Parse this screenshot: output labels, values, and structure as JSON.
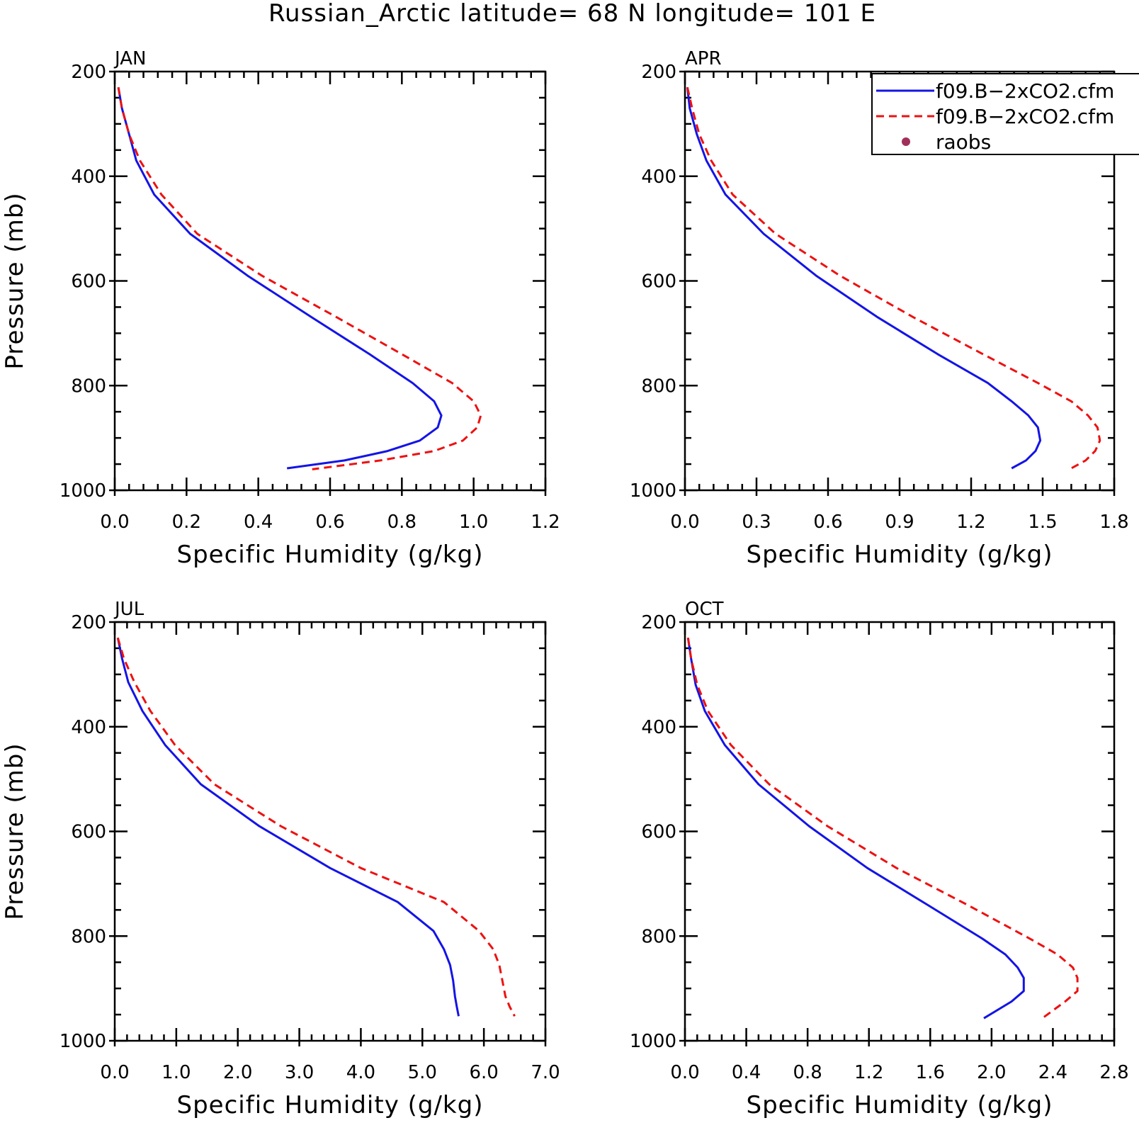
{
  "title": "Russian_Arctic  latitude= 68 N longitude= 101 E",
  "colors": {
    "model1": "#1414e6",
    "model2": "#ee1111",
    "raobs": "#a0305a",
    "axis": "#000000"
  },
  "legend": {
    "placement": "top-right",
    "entries": [
      {
        "label": "f09.B−2xCO2.cfm",
        "style": "solid",
        "color": "#1414e6"
      },
      {
        "label": "f09.B−2xCO2.cfm",
        "style": "dashed",
        "color": "#ee1111"
      },
      {
        "label": "raobs",
        "style": "marker",
        "color": "#a0305a"
      }
    ]
  },
  "chart_data": [
    {
      "type": "line",
      "title": "JAN",
      "xlabel": "Specific Humidity (g/kg)",
      "ylabel": "Pressure (mb)",
      "xlim": [
        0,
        1.2
      ],
      "ylim": [
        1000,
        200
      ],
      "y_inverted": true,
      "xticks": [
        "0.0",
        "0.2",
        "0.4",
        "0.6",
        "0.8",
        "1.0",
        "1.2"
      ],
      "yticks": [
        "200",
        "400",
        "600",
        "800",
        "1000"
      ],
      "series": [
        {
          "style": "solid",
          "points": [
            [
              0.01,
              230
            ],
            [
              0.02,
              270
            ],
            [
              0.04,
              320
            ],
            [
              0.06,
              370
            ],
            [
              0.11,
              435
            ],
            [
              0.21,
              510
            ],
            [
              0.37,
              590
            ],
            [
              0.55,
              670
            ],
            [
              0.71,
              740
            ],
            [
              0.83,
              795
            ],
            [
              0.89,
              830
            ],
            [
              0.91,
              857
            ],
            [
              0.9,
              880
            ],
            [
              0.85,
              905
            ],
            [
              0.76,
              925
            ],
            [
              0.64,
              943
            ],
            [
              0.48,
              958
            ]
          ]
        },
        {
          "style": "dashed",
          "points": [
            [
              0.01,
              230
            ],
            [
              0.02,
              270
            ],
            [
              0.04,
              320
            ],
            [
              0.07,
              370
            ],
            [
              0.13,
              435
            ],
            [
              0.23,
              510
            ],
            [
              0.41,
              590
            ],
            [
              0.62,
              670
            ],
            [
              0.8,
              740
            ],
            [
              0.94,
              795
            ],
            [
              1.0,
              830
            ],
            [
              1.02,
              857
            ],
            [
              1.01,
              880
            ],
            [
              0.97,
              905
            ],
            [
              0.89,
              925
            ],
            [
              0.74,
              943
            ],
            [
              0.55,
              960
            ]
          ]
        }
      ]
    },
    {
      "type": "line",
      "title": "APR",
      "xlabel": "Specific Humidity (g/kg)",
      "ylabel": "",
      "xlim": [
        0,
        1.8
      ],
      "ylim": [
        1000,
        200
      ],
      "y_inverted": true,
      "xticks": [
        "0.0",
        "0.3",
        "0.6",
        "0.9",
        "1.2",
        "1.5",
        "1.8"
      ],
      "yticks": [
        "200",
        "400",
        "600",
        "800",
        "1000"
      ],
      "series": [
        {
          "style": "solid",
          "points": [
            [
              0.01,
              230
            ],
            [
              0.02,
              270
            ],
            [
              0.05,
              320
            ],
            [
              0.09,
              370
            ],
            [
              0.17,
              435
            ],
            [
              0.33,
              510
            ],
            [
              0.55,
              590
            ],
            [
              0.81,
              670
            ],
            [
              1.06,
              740
            ],
            [
              1.27,
              795
            ],
            [
              1.37,
              830
            ],
            [
              1.44,
              857
            ],
            [
              1.48,
              880
            ],
            [
              1.49,
              905
            ],
            [
              1.47,
              925
            ],
            [
              1.43,
              943
            ],
            [
              1.37,
              958
            ]
          ]
        },
        {
          "style": "dashed",
          "points": [
            [
              0.01,
              230
            ],
            [
              0.03,
              270
            ],
            [
              0.06,
              320
            ],
            [
              0.11,
              370
            ],
            [
              0.2,
              435
            ],
            [
              0.38,
              510
            ],
            [
              0.65,
              590
            ],
            [
              0.96,
              670
            ],
            [
              1.25,
              740
            ],
            [
              1.48,
              795
            ],
            [
              1.62,
              830
            ],
            [
              1.69,
              857
            ],
            [
              1.73,
              880
            ],
            [
              1.74,
              905
            ],
            [
              1.72,
              925
            ],
            [
              1.68,
              943
            ],
            [
              1.62,
              958
            ]
          ]
        }
      ]
    },
    {
      "type": "line",
      "title": "JUL",
      "xlabel": "Specific Humidity (g/kg)",
      "ylabel": "Pressure (mb)",
      "xlim": [
        0,
        7.0
      ],
      "ylim": [
        1000,
        200
      ],
      "y_inverted": true,
      "xticks": [
        "0.0",
        "1.0",
        "2.0",
        "3.0",
        "4.0",
        "5.0",
        "6.0",
        "7.0"
      ],
      "yticks": [
        "200",
        "400",
        "600",
        "800",
        "1000"
      ],
      "series": [
        {
          "style": "solid",
          "points": [
            [
              0.05,
              230
            ],
            [
              0.12,
              270
            ],
            [
              0.22,
              315
            ],
            [
              0.45,
              370
            ],
            [
              0.82,
              435
            ],
            [
              1.4,
              510
            ],
            [
              2.35,
              590
            ],
            [
              3.5,
              670
            ],
            [
              4.6,
              735
            ],
            [
              5.18,
              790
            ],
            [
              5.35,
              825
            ],
            [
              5.45,
              855
            ],
            [
              5.5,
              885
            ],
            [
              5.53,
              915
            ],
            [
              5.56,
              935
            ],
            [
              5.59,
              953
            ]
          ]
        },
        {
          "style": "dashed",
          "points": [
            [
              0.05,
              230
            ],
            [
              0.15,
              270
            ],
            [
              0.32,
              315
            ],
            [
              0.58,
              370
            ],
            [
              0.98,
              435
            ],
            [
              1.62,
              510
            ],
            [
              2.7,
              590
            ],
            [
              4.0,
              670
            ],
            [
              5.35,
              735
            ],
            [
              5.92,
              790
            ],
            [
              6.15,
              825
            ],
            [
              6.25,
              855
            ],
            [
              6.3,
              885
            ],
            [
              6.35,
              915
            ],
            [
              6.42,
              935
            ],
            [
              6.5,
              953
            ]
          ]
        }
      ]
    },
    {
      "type": "line",
      "title": "OCT",
      "xlabel": "Specific Humidity (g/kg)",
      "ylabel": "",
      "xlim": [
        0,
        2.8
      ],
      "ylim": [
        1000,
        200
      ],
      "y_inverted": true,
      "xticks": [
        "0.0",
        "0.4",
        "0.8",
        "1.2",
        "1.6",
        "2.0",
        "2.4",
        "2.8"
      ],
      "yticks": [
        "200",
        "400",
        "600",
        "800",
        "1000"
      ],
      "series": [
        {
          "style": "solid",
          "points": [
            [
              0.02,
              230
            ],
            [
              0.04,
              270
            ],
            [
              0.07,
              320
            ],
            [
              0.13,
              370
            ],
            [
              0.26,
              435
            ],
            [
              0.48,
              510
            ],
            [
              0.81,
              590
            ],
            [
              1.19,
              670
            ],
            [
              1.58,
              740
            ],
            [
              1.94,
              805
            ],
            [
              2.09,
              835
            ],
            [
              2.17,
              860
            ],
            [
              2.21,
              880
            ],
            [
              2.21,
              905
            ],
            [
              2.13,
              925
            ],
            [
              1.95,
              957
            ]
          ]
        },
        {
          "style": "dashed",
          "points": [
            [
              0.02,
              230
            ],
            [
              0.04,
              270
            ],
            [
              0.08,
              320
            ],
            [
              0.15,
              370
            ],
            [
              0.3,
              435
            ],
            [
              0.55,
              510
            ],
            [
              0.93,
              590
            ],
            [
              1.38,
              670
            ],
            [
              1.84,
              740
            ],
            [
              2.25,
              805
            ],
            [
              2.43,
              835
            ],
            [
              2.53,
              860
            ],
            [
              2.56,
              880
            ],
            [
              2.56,
              905
            ],
            [
              2.48,
              925
            ],
            [
              2.34,
              955
            ]
          ]
        }
      ]
    }
  ]
}
